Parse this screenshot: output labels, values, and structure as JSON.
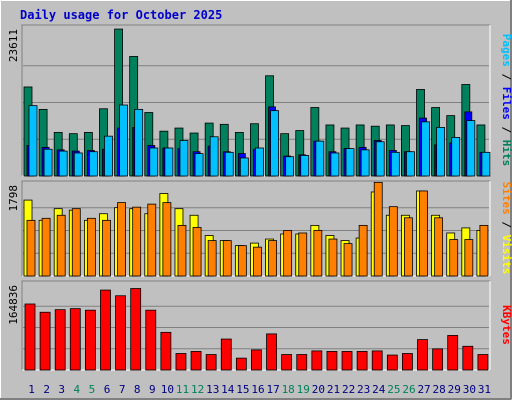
{
  "title": "Daily usage for October 2025",
  "colors": {
    "background": "#c0c0c0",
    "title": "#0000cc",
    "hits": "#00805c",
    "files": "#0000ff",
    "pages": "#00c0ff",
    "visits": "#ffff00",
    "sites": "#ff8000",
    "kbytes": "#ff0000",
    "weekend_day_label": "#00805c",
    "weekday_label": "#000080"
  },
  "chart_data": [
    {
      "type": "bar",
      "panel": "hits-files-pages",
      "ymax_label": "23611",
      "ylim": [
        0,
        23611
      ],
      "legend": [
        "Pages",
        "Files",
        "Hits"
      ],
      "categories": [
        "1",
        "2",
        "3",
        "4",
        "5",
        "6",
        "7",
        "8",
        "9",
        "10",
        "11",
        "12",
        "13",
        "14",
        "15",
        "16",
        "17",
        "18",
        "19",
        "20",
        "21",
        "22",
        "23",
        "24",
        "25",
        "26",
        "27",
        "28",
        "29",
        "30",
        "31"
      ],
      "weekend": [
        4,
        5,
        11,
        12,
        18,
        19,
        25,
        26
      ],
      "series": [
        {
          "name": "Hits",
          "values": [
            14300,
            10700,
            7000,
            6800,
            7000,
            10800,
            23600,
            19200,
            10200,
            7200,
            7700,
            6900,
            8500,
            8300,
            7000,
            8400,
            16100,
            6800,
            7300,
            11000,
            8200,
            7700,
            8200,
            8000,
            8200,
            8100,
            13900,
            11000,
            9700,
            14700,
            8200
          ]
        },
        {
          "name": "Files",
          "values": [
            4900,
            4600,
            4200,
            4000,
            4100,
            4300,
            7700,
            7800,
            4900,
            4500,
            4400,
            3900,
            4800,
            3900,
            3600,
            4300,
            11100,
            3200,
            3400,
            5600,
            3900,
            4400,
            4600,
            5700,
            4100,
            3900,
            9300,
            5000,
            5300,
            10300,
            3800
          ]
        },
        {
          "name": "Pages",
          "values": [
            11300,
            4300,
            4000,
            3700,
            3900,
            6400,
            11400,
            10700,
            4500,
            4500,
            5700,
            3600,
            6300,
            3800,
            2900,
            4500,
            10500,
            3100,
            3300,
            5600,
            3700,
            4400,
            4200,
            5500,
            3800,
            3900,
            8700,
            7800,
            6200,
            8900,
            3800
          ]
        }
      ]
    },
    {
      "type": "bar",
      "panel": "visits-sites",
      "ymax_label": "1798",
      "ylim": [
        0,
        1798
      ],
      "legend": [
        "Sites",
        "Visits"
      ],
      "categories": [
        "1",
        "2",
        "3",
        "4",
        "5",
        "6",
        "7",
        "8",
        "9",
        "10",
        "11",
        "12",
        "13",
        "14",
        "15",
        "16",
        "17",
        "18",
        "19",
        "20",
        "21",
        "22",
        "23",
        "24",
        "25",
        "26",
        "27",
        "28",
        "29",
        "30",
        "31"
      ],
      "series": [
        {
          "name": "Visits",
          "values": [
            1500,
            1100,
            1330,
            1300,
            1100,
            1230,
            1350,
            1330,
            1230,
            1630,
            1330,
            1200,
            800,
            700,
            600,
            650,
            730,
            830,
            830,
            1000,
            800,
            700,
            750,
            1660,
            1200,
            1200,
            1680,
            1200,
            850,
            950,
            900
          ]
        },
        {
          "name": "Sites",
          "values": [
            1100,
            1140,
            1200,
            1330,
            1140,
            1100,
            1450,
            1360,
            1420,
            1450,
            1000,
            960,
            700,
            700,
            600,
            570,
            700,
            900,
            850,
            900,
            730,
            640,
            1000,
            1850,
            1370,
            1150,
            1680,
            1150,
            720,
            720,
            1000
          ]
        }
      ]
    },
    {
      "type": "bar",
      "panel": "kbytes",
      "ymax_label": "164836",
      "ylim": [
        0,
        164836
      ],
      "legend": [
        "KBytes"
      ],
      "categories": [
        "1",
        "2",
        "3",
        "4",
        "5",
        "6",
        "7",
        "8",
        "9",
        "10",
        "11",
        "12",
        "13",
        "14",
        "15",
        "16",
        "17",
        "18",
        "19",
        "20",
        "21",
        "22",
        "23",
        "24",
        "25",
        "26",
        "27",
        "28",
        "29",
        "30",
        "31"
      ],
      "series": [
        {
          "name": "KBytes",
          "values": [
            128000,
            112000,
            117000,
            119000,
            116000,
            155000,
            144000,
            158000,
            116000,
            73000,
            32000,
            36000,
            30000,
            60000,
            23000,
            39000,
            70000,
            30000,
            30000,
            37000,
            36000,
            36000,
            36000,
            37000,
            29000,
            32000,
            59000,
            41000,
            67000,
            46000,
            30000
          ]
        }
      ]
    }
  ]
}
